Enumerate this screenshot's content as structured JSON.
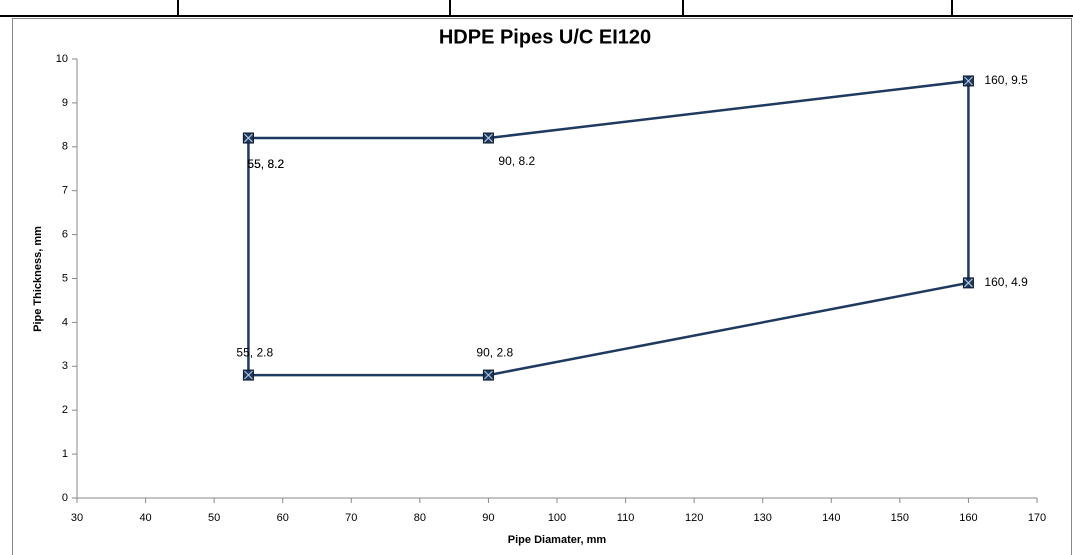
{
  "chart_data": {
    "type": "line",
    "title": "HDPE Pipes U/C EI120",
    "x_label": "Pipe Diamater, mm",
    "y_label": "Pipe Thickness, mm",
    "series": [
      {
        "color": "#1f3a60",
        "x": [
          55,
          90,
          160,
          160,
          90,
          55,
          55
        ],
        "values": [
          8.2,
          8.2,
          9.5,
          4.9,
          2.8,
          2.8,
          8.2
        ],
        "value_labels": [
          "55, 8.2",
          "90, 8.2",
          "160, 9.5",
          "160, 4.9",
          "90, 2.8",
          "55, 2.8",
          "55, 8.2"
        ]
      }
    ],
    "xlim": [
      30,
      170
    ],
    "xticks": [
      30,
      40,
      50,
      60,
      70,
      80,
      90,
      100,
      110,
      120,
      130,
      140,
      150,
      160,
      170
    ],
    "ylim": [
      0,
      10
    ],
    "yticks": [
      0,
      1,
      2,
      3,
      4,
      5,
      6,
      7,
      8,
      9,
      10
    ],
    "grid": false
  }
}
